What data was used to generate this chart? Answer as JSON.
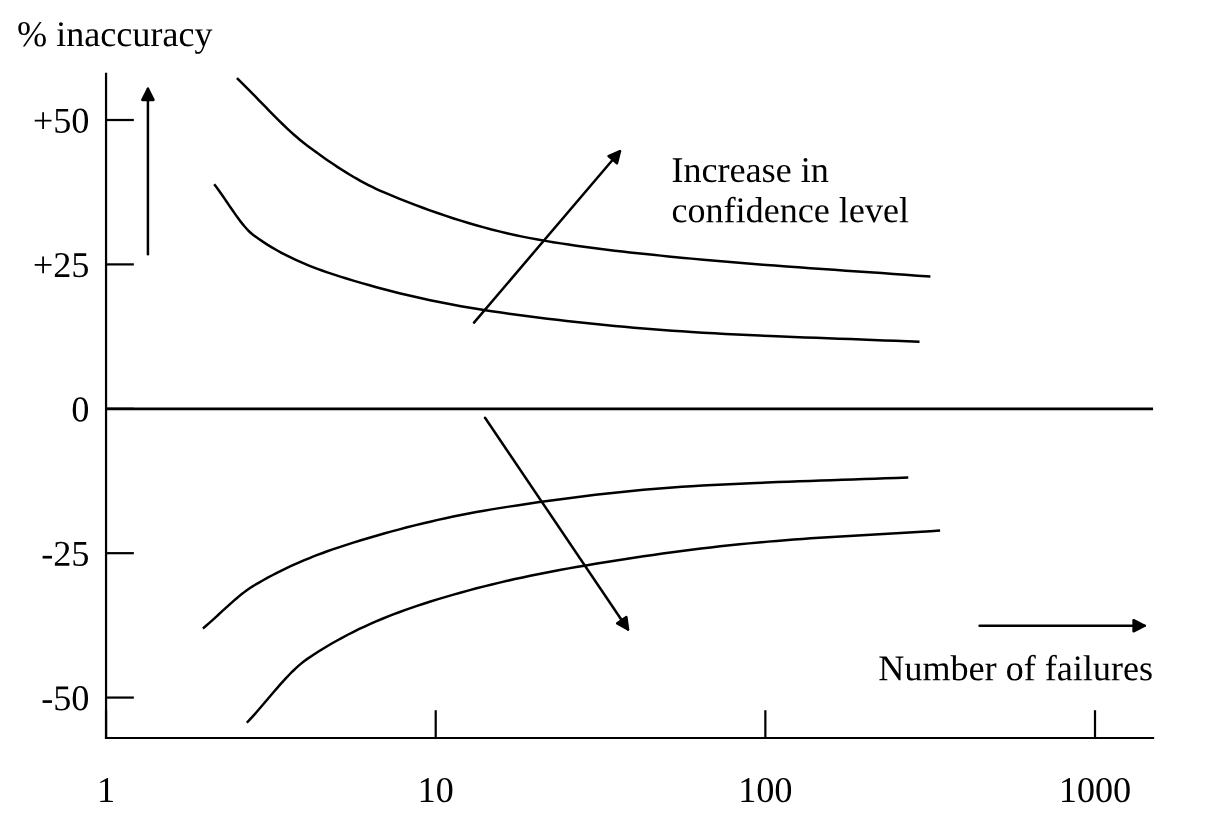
{
  "chart_data": {
    "type": "line",
    "xlabel": "Number of failures",
    "ylabel": "% inaccuracy",
    "annotations": [
      "Increase in\nconfidence level"
    ],
    "log": "x",
    "xlim": [
      1,
      1500
    ],
    "xticks": [
      1,
      10,
      100,
      1000
    ],
    "ylim": [
      -57,
      58
    ],
    "yticks": [
      {
        "value": 50,
        "label": "+50"
      },
      {
        "value": 25,
        "label": "+25"
      },
      0,
      {
        "value": -25,
        "label": "-25"
      },
      {
        "value": -50,
        "label": "-50"
      }
    ],
    "grid": false,
    "marker": "none",
    "line_style": "solid",
    "ref_lines": [
      {
        "axis": "y",
        "value": 0,
        "color": "#000000"
      }
    ],
    "series": [
      {
        "color": "#000000",
        "x": [
          2.51,
          4.09,
          6.95,
          20.4,
          59.7,
          314
        ],
        "values": [
          57.1,
          45.5,
          37.5,
          29.3,
          26.0,
          22.9
        ]
      },
      {
        "color": "#000000",
        "x": [
          2.14,
          2.81,
          5.33,
          15.6,
          59.7,
          291
        ],
        "values": [
          38.7,
          30.0,
          22.6,
          16.7,
          13.3,
          11.6
        ]
      },
      {
        "color": "#000000",
        "x": [
          1.98,
          2.81,
          5.33,
          15.6,
          59.7,
          269
        ],
        "values": [
          -37.9,
          -30.6,
          -23.6,
          -17.2,
          -13.4,
          -11.9
        ]
      },
      {
        "color": "#000000",
        "x": [
          2.69,
          4.08,
          9.14,
          26.7,
          102,
          336
        ],
        "values": [
          -54.2,
          -43.3,
          -33.8,
          -27.4,
          -23.0,
          -21.1
        ]
      }
    ]
  }
}
